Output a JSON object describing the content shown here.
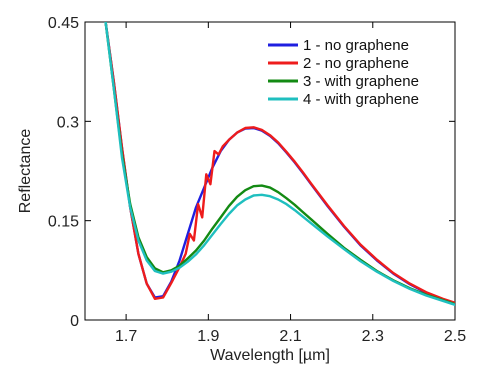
{
  "chart_data": {
    "type": "line",
    "title": "",
    "xlabel": "Wavelength [µm]",
    "ylabel": "Reflectance",
    "xlim": [
      1.6,
      2.5
    ],
    "ylim": [
      0,
      0.45
    ],
    "xticks": [
      1.7,
      1.9,
      2.1,
      2.3,
      2.5
    ],
    "xtick_labels": [
      "1.7",
      "1.9",
      "2.1",
      "2.3",
      "2.5"
    ],
    "yticks": [
      0,
      0.15,
      0.3,
      0.45
    ],
    "ytick_labels": [
      "0",
      "0.15",
      "0.3",
      "0.45"
    ],
    "grid": false,
    "legend_position": "top-right",
    "series": [
      {
        "name": "1 - no graphene",
        "color": "#1f1fe0",
        "points": [
          [
            1.65,
            0.45
          ],
          [
            1.67,
            0.36
          ],
          [
            1.69,
            0.26
          ],
          [
            1.71,
            0.17
          ],
          [
            1.73,
            0.1
          ],
          [
            1.75,
            0.055
          ],
          [
            1.77,
            0.034
          ],
          [
            1.79,
            0.036
          ],
          [
            1.81,
            0.058
          ],
          [
            1.83,
            0.09
          ],
          [
            1.85,
            0.13
          ],
          [
            1.87,
            0.17
          ],
          [
            1.89,
            0.2
          ],
          [
            1.91,
            0.23
          ],
          [
            1.93,
            0.255
          ],
          [
            1.95,
            0.272
          ],
          [
            1.97,
            0.283
          ],
          [
            1.99,
            0.289
          ],
          [
            2.01,
            0.29
          ],
          [
            2.03,
            0.286
          ],
          [
            2.05,
            0.278
          ],
          [
            2.07,
            0.267
          ],
          [
            2.09,
            0.253
          ],
          [
            2.11,
            0.238
          ],
          [
            2.13,
            0.222
          ],
          [
            2.15,
            0.205
          ],
          [
            2.19,
            0.172
          ],
          [
            2.23,
            0.141
          ],
          [
            2.27,
            0.113
          ],
          [
            2.31,
            0.09
          ],
          [
            2.35,
            0.07
          ],
          [
            2.39,
            0.054
          ],
          [
            2.43,
            0.041
          ],
          [
            2.47,
            0.031
          ],
          [
            2.5,
            0.025
          ]
        ]
      },
      {
        "name": "2 - no graphene",
        "color": "#ee1c1c",
        "points": [
          [
            1.65,
            0.45
          ],
          [
            1.67,
            0.36
          ],
          [
            1.69,
            0.26
          ],
          [
            1.71,
            0.17
          ],
          [
            1.73,
            0.1
          ],
          [
            1.75,
            0.055
          ],
          [
            1.77,
            0.032
          ],
          [
            1.79,
            0.034
          ],
          [
            1.81,
            0.056
          ],
          [
            1.83,
            0.08
          ],
          [
            1.845,
            0.1
          ],
          [
            1.855,
            0.13
          ],
          [
            1.865,
            0.12
          ],
          [
            1.875,
            0.175
          ],
          [
            1.885,
            0.155
          ],
          [
            1.895,
            0.22
          ],
          [
            1.905,
            0.205
          ],
          [
            1.915,
            0.255
          ],
          [
            1.925,
            0.25
          ],
          [
            1.935,
            0.262
          ],
          [
            1.95,
            0.272
          ],
          [
            1.97,
            0.283
          ],
          [
            1.99,
            0.29
          ],
          [
            2.01,
            0.291
          ],
          [
            2.03,
            0.287
          ],
          [
            2.05,
            0.279
          ],
          [
            2.07,
            0.268
          ],
          [
            2.09,
            0.254
          ],
          [
            2.11,
            0.239
          ],
          [
            2.13,
            0.223
          ],
          [
            2.15,
            0.206
          ],
          [
            2.19,
            0.173
          ],
          [
            2.23,
            0.142
          ],
          [
            2.27,
            0.114
          ],
          [
            2.31,
            0.091
          ],
          [
            2.35,
            0.071
          ],
          [
            2.39,
            0.055
          ],
          [
            2.43,
            0.042
          ],
          [
            2.47,
            0.032
          ],
          [
            2.5,
            0.026
          ]
        ]
      },
      {
        "name": "3 - with graphene",
        "color": "#138a13",
        "points": [
          [
            1.65,
            0.45
          ],
          [
            1.67,
            0.35
          ],
          [
            1.69,
            0.25
          ],
          [
            1.71,
            0.175
          ],
          [
            1.73,
            0.125
          ],
          [
            1.75,
            0.095
          ],
          [
            1.77,
            0.078
          ],
          [
            1.79,
            0.072
          ],
          [
            1.81,
            0.075
          ],
          [
            1.83,
            0.082
          ],
          [
            1.85,
            0.093
          ],
          [
            1.87,
            0.105
          ],
          [
            1.89,
            0.12
          ],
          [
            1.91,
            0.138
          ],
          [
            1.93,
            0.155
          ],
          [
            1.95,
            0.172
          ],
          [
            1.97,
            0.186
          ],
          [
            1.99,
            0.196
          ],
          [
            2.01,
            0.202
          ],
          [
            2.03,
            0.203
          ],
          [
            2.05,
            0.2
          ],
          [
            2.07,
            0.193
          ],
          [
            2.09,
            0.184
          ],
          [
            2.11,
            0.174
          ],
          [
            2.13,
            0.163
          ],
          [
            2.15,
            0.152
          ],
          [
            2.19,
            0.13
          ],
          [
            2.23,
            0.109
          ],
          [
            2.27,
            0.091
          ],
          [
            2.31,
            0.074
          ],
          [
            2.35,
            0.06
          ],
          [
            2.39,
            0.048
          ],
          [
            2.43,
            0.038
          ],
          [
            2.47,
            0.03
          ],
          [
            2.5,
            0.024
          ]
        ]
      },
      {
        "name": "4 - with graphene",
        "color": "#1fbfbf",
        "points": [
          [
            1.65,
            0.45
          ],
          [
            1.67,
            0.35
          ],
          [
            1.69,
            0.245
          ],
          [
            1.71,
            0.17
          ],
          [
            1.73,
            0.12
          ],
          [
            1.75,
            0.09
          ],
          [
            1.77,
            0.074
          ],
          [
            1.79,
            0.07
          ],
          [
            1.81,
            0.073
          ],
          [
            1.83,
            0.079
          ],
          [
            1.85,
            0.088
          ],
          [
            1.87,
            0.099
          ],
          [
            1.89,
            0.113
          ],
          [
            1.91,
            0.129
          ],
          [
            1.93,
            0.145
          ],
          [
            1.95,
            0.16
          ],
          [
            1.97,
            0.173
          ],
          [
            1.99,
            0.182
          ],
          [
            2.01,
            0.188
          ],
          [
            2.03,
            0.189
          ],
          [
            2.05,
            0.187
          ],
          [
            2.07,
            0.182
          ],
          [
            2.09,
            0.175
          ],
          [
            2.11,
            0.166
          ],
          [
            2.13,
            0.156
          ],
          [
            2.15,
            0.146
          ],
          [
            2.19,
            0.126
          ],
          [
            2.23,
            0.107
          ],
          [
            2.27,
            0.089
          ],
          [
            2.31,
            0.073
          ],
          [
            2.35,
            0.059
          ],
          [
            2.39,
            0.047
          ],
          [
            2.43,
            0.037
          ],
          [
            2.47,
            0.029
          ],
          [
            2.5,
            0.023
          ]
        ]
      }
    ]
  }
}
